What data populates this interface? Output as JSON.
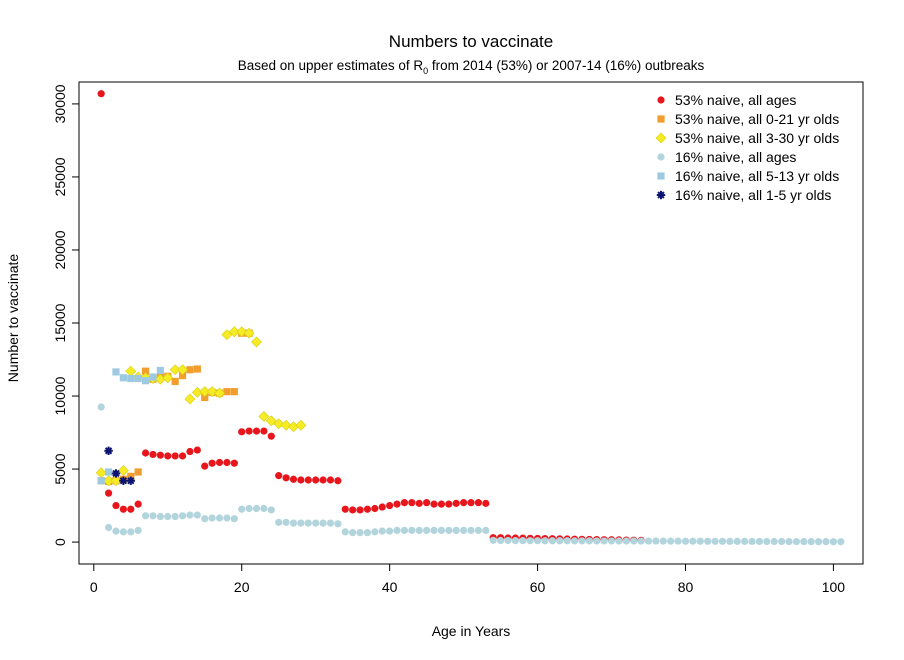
{
  "chart_data": {
    "type": "scatter",
    "title": "Numbers to vaccinate",
    "subtitle": {
      "prefix": "Based on upper estimates of R",
      "subscript": "0",
      "suffix": " from 2014 (53%) or 2007-14 (16%) outbreaks"
    },
    "xlabel": "Age in Years",
    "ylabel": "Number to vaccinate",
    "xlim": [
      -2,
      104
    ],
    "ylim": [
      -1500,
      31500
    ],
    "xticks": [
      0,
      20,
      40,
      60,
      80,
      100
    ],
    "yticks": [
      0,
      5000,
      10000,
      15000,
      20000,
      25000,
      30000
    ],
    "grid": false,
    "legend_position": "top-right",
    "series": [
      {
        "name": "53% naive, all ages",
        "marker": "circle",
        "color": "#e8161c",
        "x": [
          1,
          2,
          3,
          4,
          5,
          6,
          7,
          8,
          9,
          10,
          11,
          12,
          13,
          14,
          15,
          16,
          17,
          18,
          19,
          20,
          21,
          22,
          23,
          24,
          25,
          26,
          27,
          28,
          29,
          30,
          31,
          32,
          33,
          34,
          35,
          36,
          37,
          38,
          39,
          40,
          41,
          42,
          43,
          44,
          45,
          46,
          47,
          48,
          49,
          50,
          51,
          52,
          53,
          54,
          55,
          56,
          57,
          58,
          59,
          60,
          61,
          62,
          63,
          64,
          65,
          66,
          67,
          68,
          69,
          70,
          71,
          72,
          73,
          74
        ],
        "y": [
          30700,
          3350,
          2500,
          2250,
          2250,
          2600,
          6100,
          6000,
          5950,
          5900,
          5900,
          5900,
          6200,
          6300,
          5200,
          5400,
          5450,
          5450,
          5400,
          7550,
          7600,
          7600,
          7600,
          7250,
          4550,
          4400,
          4300,
          4250,
          4250,
          4250,
          4250,
          4250,
          4200,
          2250,
          2200,
          2200,
          2250,
          2300,
          2400,
          2500,
          2600,
          2700,
          2700,
          2650,
          2700,
          2600,
          2600,
          2600,
          2650,
          2700,
          2700,
          2700,
          2650,
          300,
          300,
          280,
          280,
          270,
          260,
          250,
          240,
          230,
          220,
          210,
          200,
          190,
          180,
          170,
          165,
          160,
          150,
          140,
          130,
          120
        ]
      },
      {
        "name": "53% naive, all 0-21 yr olds",
        "marker": "square",
        "color": "#f29e2e",
        "x": [
          1,
          2,
          3,
          4,
          5,
          6,
          7,
          8,
          9,
          10,
          11,
          12,
          13,
          14,
          15,
          16,
          17,
          18,
          19,
          20,
          21
        ],
        "y": [
          4200,
          4150,
          4200,
          4300,
          4500,
          4800,
          11700,
          11150,
          11300,
          11350,
          11000,
          11400,
          11800,
          11850,
          9900,
          10250,
          10200,
          10300,
          10300,
          14300,
          14300
        ]
      },
      {
        "name": "53% naive, all 3-30 yr olds",
        "marker": "diamond",
        "color": "#f5ec25",
        "x": [
          1,
          2,
          3,
          4,
          5,
          6,
          7,
          8,
          9,
          10,
          11,
          12,
          13,
          14,
          15,
          16,
          17,
          18,
          19,
          20,
          21,
          22,
          23,
          24,
          25,
          26,
          27,
          28
        ],
        "y": [
          4750,
          4200,
          4200,
          4900,
          11700,
          11300,
          11250,
          11200,
          11150,
          11250,
          11800,
          11800,
          9800,
          10250,
          10300,
          10300,
          10200,
          14200,
          14400,
          14400,
          14300,
          13700,
          8600,
          8300,
          8100,
          8000,
          7900,
          8000
        ]
      },
      {
        "name": "16% naive, all ages",
        "marker": "circle",
        "color": "#b2d4dc",
        "x": [
          1,
          2,
          3,
          4,
          5,
          6,
          7,
          8,
          9,
          10,
          11,
          12,
          13,
          14,
          15,
          16,
          17,
          18,
          19,
          20,
          21,
          22,
          23,
          24,
          25,
          26,
          27,
          28,
          29,
          30,
          31,
          32,
          33,
          34,
          35,
          36,
          37,
          38,
          39,
          40,
          41,
          42,
          43,
          44,
          45,
          46,
          47,
          48,
          49,
          50,
          51,
          52,
          53,
          54,
          55,
          56,
          57,
          58,
          59,
          60,
          61,
          62,
          63,
          64,
          65,
          66,
          67,
          68,
          69,
          70,
          71,
          72,
          73,
          74,
          75,
          76,
          77,
          78,
          79,
          80,
          81,
          82,
          83,
          84,
          85,
          86,
          87,
          88,
          89,
          90,
          91,
          92,
          93,
          94,
          95,
          96,
          97,
          98,
          99,
          100,
          101
        ],
        "y": [
          9250,
          1000,
          750,
          700,
          700,
          800,
          1800,
          1800,
          1750,
          1750,
          1750,
          1800,
          1850,
          1850,
          1600,
          1650,
          1650,
          1650,
          1600,
          2250,
          2300,
          2300,
          2300,
          2200,
          1350,
          1350,
          1300,
          1300,
          1300,
          1300,
          1300,
          1300,
          1250,
          700,
          650,
          650,
          650,
          700,
          750,
          750,
          800,
          800,
          800,
          800,
          800,
          800,
          800,
          800,
          800,
          800,
          800,
          800,
          800,
          120,
          110,
          110,
          100,
          100,
          95,
          95,
          90,
          90,
          90,
          90,
          85,
          85,
          85,
          80,
          80,
          80,
          75,
          75,
          75,
          70,
          70,
          70,
          65,
          65,
          65,
          60,
          60,
          60,
          55,
          55,
          55,
          50,
          50,
          50,
          45,
          45,
          40,
          40,
          40,
          35,
          35,
          35,
          30,
          30,
          30,
          25,
          25
        ]
      },
      {
        "name": "16% naive, all 5-13 yr olds",
        "marker": "square",
        "color": "#9ecae1",
        "x": [
          1,
          2,
          3,
          4,
          5,
          6,
          7,
          8,
          9
        ],
        "y": [
          4200,
          4800,
          11650,
          11250,
          11200,
          11200,
          11050,
          11300,
          11750
        ]
      },
      {
        "name": "16% naive, all 1-5 yr olds",
        "marker": "star",
        "color": "#0b1470",
        "x": [
          2,
          3,
          4,
          5
        ],
        "y": [
          6250,
          4700,
          4200,
          4200
        ]
      }
    ]
  }
}
